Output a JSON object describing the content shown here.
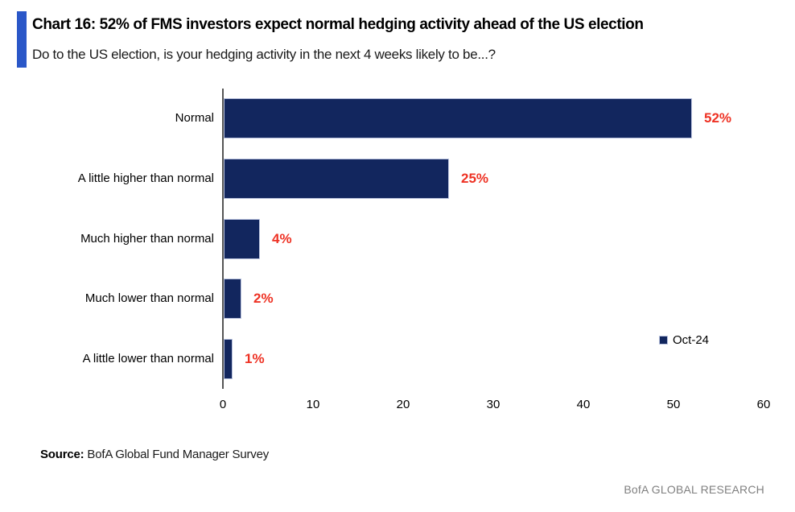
{
  "header": {
    "title": "Chart 16: 52% of FMS investors expect normal hedging activity ahead of the US election",
    "subtitle": "Do to the US election, is your hedging activity in the next 4 weeks likely to be...?",
    "accent_color": "#2A57C8"
  },
  "chart_data": {
    "type": "bar",
    "orientation": "horizontal",
    "categories": [
      "Normal",
      "A little higher than normal",
      "Much higher than normal",
      "Much lower than normal",
      "A little lower than normal"
    ],
    "values": [
      52,
      25,
      4,
      2,
      1
    ],
    "value_labels": [
      "52%",
      "25%",
      "4%",
      "2%",
      "1%"
    ],
    "series": [
      {
        "name": "Oct-24",
        "values": [
          52,
          25,
          4,
          2,
          1
        ]
      }
    ],
    "title": "",
    "xlabel": "",
    "ylabel": "",
    "xlim": [
      0,
      60
    ],
    "xticks": [
      0,
      10,
      20,
      30,
      40,
      50,
      60
    ],
    "grid": false,
    "bar_color": "#12265E",
    "value_label_color": "#EE3224",
    "legend_position": "middle-right"
  },
  "legend": {
    "label": "Oct-24",
    "marker_color": "#12265E",
    "marker_icon": "legend-square-icon"
  },
  "source": {
    "prefix": "Source:",
    "text": " BofA Global Fund Manager Survey"
  },
  "footer": {
    "brand": "BofA GLOBAL RESEARCH"
  }
}
